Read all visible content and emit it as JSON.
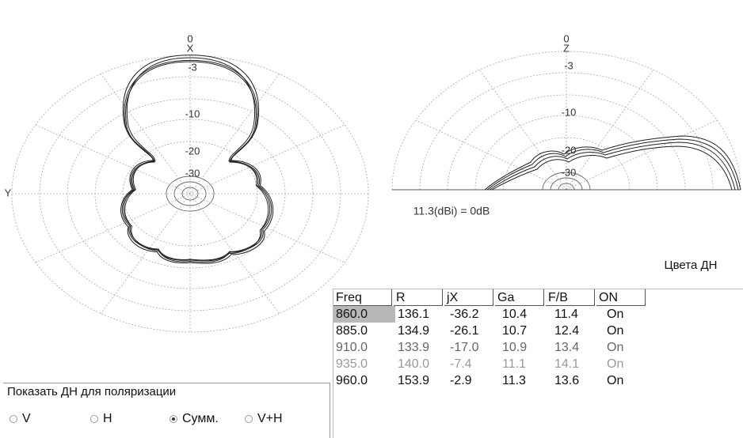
{
  "left_plot": {
    "top_label": "0",
    "x_label": "X",
    "y_label": "Y",
    "ring_labels": [
      "-3",
      "-10",
      "-20",
      "-30"
    ]
  },
  "right_plot": {
    "top_label": "0",
    "z_label": "Z",
    "ring_labels": [
      "-3",
      "-10",
      "-20",
      "-30"
    ],
    "gain_note": "11.3(dBi) = 0dB"
  },
  "button": "Цвета ДН",
  "table": {
    "columns": [
      "Freq",
      "R",
      "jX",
      "Ga",
      "F/B",
      "ON"
    ],
    "rows": [
      [
        "860.0",
        "136.1",
        "-36.2",
        "10.4",
        "11.4",
        "On"
      ],
      [
        "885.0",
        "134.9",
        "-26.1",
        "10.7",
        "12.4",
        "On"
      ],
      [
        "910.0",
        "133.9",
        "-17.0",
        "10.9",
        "13.4",
        "On"
      ],
      [
        "935.0",
        "140.0",
        "-7.4",
        "11.1",
        "14.1",
        "On"
      ],
      [
        "960.0",
        "153.9",
        "-2.9",
        "11.3",
        "13.6",
        "On"
      ]
    ]
  },
  "polarization": {
    "title": "Показать ДН для поляризации",
    "options": [
      "V",
      "H",
      "Сумм.",
      "V+H"
    ],
    "selected": 2
  }
}
